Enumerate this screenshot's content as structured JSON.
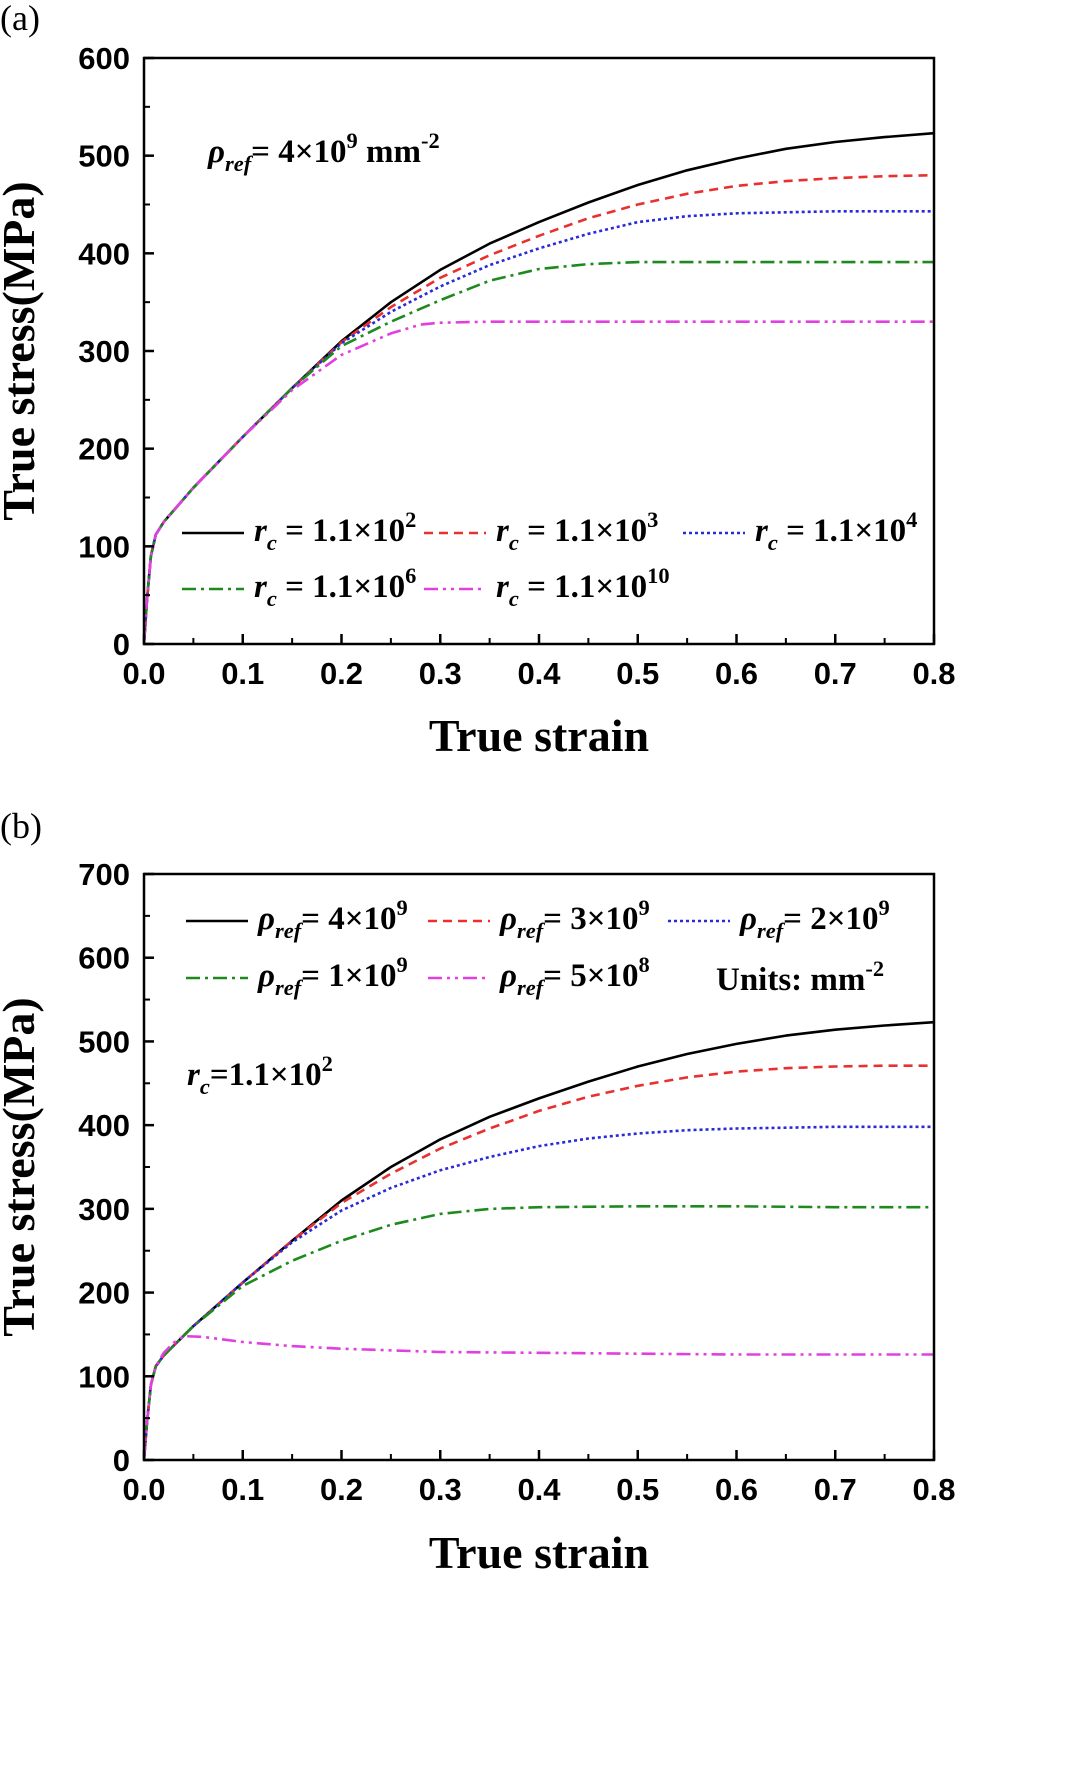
{
  "chart_data": [
    {
      "panel_label": "(a)",
      "type": "line",
      "xlabel": "True strain",
      "ylabel": "True stress(MPa)",
      "xlim": [
        0,
        0.8
      ],
      "ylim": [
        0,
        600
      ],
      "xticks": [
        "0.0",
        "0.1",
        "0.2",
        "0.3",
        "0.4",
        "0.5",
        "0.6",
        "0.7",
        "0.8"
      ],
      "yticks": [
        "0",
        "100",
        "200",
        "300",
        "400",
        "500",
        "600"
      ],
      "annotation": {
        "sym": "ρ",
        "sub": "ref",
        "pre": "= 4×10",
        "sup": "9",
        "post": " mm",
        "unitsup": "-2"
      },
      "legend_placement": "lower-center",
      "series": [
        {
          "name": "r_c = 1.1×10^2",
          "sym": "r",
          "sub": "c",
          "pre": " = 1.1×10",
          "sup": "2",
          "color": "#000000",
          "dash": "",
          "x": [
            0,
            0.003,
            0.007,
            0.012,
            0.02,
            0.05,
            0.1,
            0.15,
            0.2,
            0.25,
            0.3,
            0.35,
            0.4,
            0.45,
            0.5,
            0.55,
            0.6,
            0.65,
            0.7,
            0.75,
            0.8
          ],
          "y": [
            0,
            45,
            90,
            112,
            125,
            160,
            212,
            262,
            310,
            350,
            383,
            410,
            432,
            452,
            470,
            485,
            497,
            507,
            514,
            519,
            523
          ]
        },
        {
          "name": "r_c = 1.1×10^3",
          "sym": "r",
          "sub": "c",
          "pre": " = 1.1×10",
          "sup": "3",
          "color": "#e8312f",
          "dash": "9,6",
          "x": [
            0,
            0.003,
            0.007,
            0.012,
            0.02,
            0.05,
            0.1,
            0.15,
            0.2,
            0.25,
            0.3,
            0.35,
            0.4,
            0.45,
            0.5,
            0.55,
            0.6,
            0.65,
            0.7,
            0.75,
            0.8
          ],
          "y": [
            0,
            45,
            90,
            112,
            125,
            160,
            212,
            262,
            309,
            345,
            375,
            398,
            418,
            436,
            450,
            461,
            469,
            474,
            477,
            479,
            480
          ]
        },
        {
          "name": "r_c = 1.1×10^4",
          "sym": "r",
          "sub": "c",
          "pre": " = 1.1×10",
          "sup": "4",
          "color": "#2a2ad8",
          "dash": "3,3",
          "x": [
            0,
            0.003,
            0.007,
            0.012,
            0.02,
            0.05,
            0.1,
            0.15,
            0.2,
            0.25,
            0.3,
            0.35,
            0.4,
            0.45,
            0.5,
            0.55,
            0.6,
            0.65,
            0.7,
            0.75,
            0.8
          ],
          "y": [
            0,
            45,
            90,
            112,
            125,
            160,
            212,
            262,
            308,
            340,
            366,
            388,
            405,
            420,
            432,
            438,
            441,
            442,
            443,
            443,
            443
          ]
        },
        {
          "name": "r_c = 1.1×10^6",
          "sym": "r",
          "sub": "c",
          "pre": " = 1.1×10",
          "sup": "6",
          "color": "#1e8a1e",
          "dash": "14,5,3,5",
          "x": [
            0,
            0.003,
            0.007,
            0.012,
            0.02,
            0.05,
            0.1,
            0.15,
            0.2,
            0.25,
            0.3,
            0.35,
            0.4,
            0.45,
            0.5,
            0.55,
            0.6,
            0.7,
            0.8
          ],
          "y": [
            0,
            45,
            90,
            112,
            125,
            160,
            212,
            262,
            305,
            330,
            352,
            372,
            384,
            389,
            391,
            391,
            391,
            391,
            391
          ]
        },
        {
          "name": "r_c = 1.1×10^10",
          "sym": "r",
          "sub": "c",
          "pre": " = 1.1×10",
          "sup": "10",
          "color": "#e040e0",
          "dash": "14,5,3,5,3,5",
          "x": [
            0,
            0.003,
            0.007,
            0.012,
            0.02,
            0.05,
            0.1,
            0.15,
            0.2,
            0.25,
            0.28,
            0.3,
            0.35,
            0.4,
            0.5,
            0.6,
            0.7,
            0.8
          ],
          "y": [
            0,
            45,
            90,
            112,
            125,
            160,
            212,
            260,
            296,
            318,
            327,
            329,
            330,
            330,
            330,
            330,
            330,
            330
          ]
        }
      ]
    },
    {
      "panel_label": "(b)",
      "type": "line",
      "xlabel": "True strain",
      "ylabel": "True stress(MPa)",
      "xlim": [
        0,
        0.8
      ],
      "ylim": [
        0,
        700
      ],
      "xticks": [
        "0.0",
        "0.1",
        "0.2",
        "0.3",
        "0.4",
        "0.5",
        "0.6",
        "0.7",
        "0.8"
      ],
      "yticks": [
        "0",
        "100",
        "200",
        "300",
        "400",
        "500",
        "600",
        "700"
      ],
      "annotation": {
        "sym": "r",
        "sub": "c",
        "pre": "=1.1×10",
        "sup": "2"
      },
      "units_note": {
        "text": "Units: mm",
        "sup": "-2"
      },
      "legend_placement": "top",
      "series": [
        {
          "name": "ρ_ref = 4×10^9",
          "sym": "ρ",
          "sub": "ref",
          "pre": "= 4×10",
          "sup": "9",
          "color": "#000000",
          "dash": "",
          "x": [
            0,
            0.003,
            0.007,
            0.012,
            0.02,
            0.05,
            0.1,
            0.15,
            0.2,
            0.25,
            0.3,
            0.35,
            0.4,
            0.45,
            0.5,
            0.55,
            0.6,
            0.65,
            0.7,
            0.75,
            0.8
          ],
          "y": [
            0,
            45,
            90,
            112,
            125,
            160,
            212,
            262,
            310,
            350,
            383,
            410,
            432,
            452,
            470,
            485,
            497,
            507,
            514,
            519,
            523
          ]
        },
        {
          "name": "ρ_ref = 3×10^9",
          "sym": "ρ",
          "sub": "ref",
          "pre": "= 3×10",
          "sup": "9",
          "color": "#e8312f",
          "dash": "9,6",
          "x": [
            0,
            0.003,
            0.007,
            0.012,
            0.02,
            0.05,
            0.1,
            0.15,
            0.2,
            0.25,
            0.3,
            0.35,
            0.4,
            0.45,
            0.5,
            0.55,
            0.6,
            0.65,
            0.7,
            0.75,
            0.8
          ],
          "y": [
            0,
            45,
            90,
            112,
            125,
            160,
            212,
            262,
            307,
            342,
            372,
            396,
            417,
            434,
            447,
            457,
            464,
            468,
            470,
            471,
            471
          ]
        },
        {
          "name": "ρ_ref = 2×10^9",
          "sym": "ρ",
          "sub": "ref",
          "pre": "= 2×10",
          "sup": "9",
          "color": "#2a2ad8",
          "dash": "3,3",
          "x": [
            0,
            0.003,
            0.007,
            0.012,
            0.02,
            0.05,
            0.1,
            0.15,
            0.2,
            0.25,
            0.3,
            0.35,
            0.4,
            0.45,
            0.5,
            0.55,
            0.6,
            0.65,
            0.7,
            0.75,
            0.8
          ],
          "y": [
            0,
            45,
            90,
            112,
            125,
            160,
            212,
            260,
            298,
            325,
            346,
            362,
            375,
            384,
            390,
            394,
            396,
            397,
            398,
            398,
            398
          ]
        },
        {
          "name": "ρ_ref = 1×10^9",
          "sym": "ρ",
          "sub": "ref",
          "pre": "= 1×10",
          "sup": "9",
          "color": "#1e8a1e",
          "dash": "14,5,3,5",
          "x": [
            0,
            0.003,
            0.007,
            0.012,
            0.02,
            0.05,
            0.1,
            0.15,
            0.2,
            0.25,
            0.3,
            0.35,
            0.4,
            0.5,
            0.6,
            0.7,
            0.8
          ],
          "y": [
            0,
            45,
            90,
            112,
            125,
            160,
            208,
            238,
            262,
            281,
            294,
            300,
            302,
            303,
            303,
            302,
            302
          ]
        },
        {
          "name": "ρ_ref = 5×10^8",
          "sym": "ρ",
          "sub": "ref",
          "pre": "= 5×10",
          "sup": "8",
          "color": "#e040e0",
          "dash": "14,5,3,5,3,5",
          "x": [
            0,
            0.003,
            0.007,
            0.012,
            0.02,
            0.03,
            0.04,
            0.06,
            0.1,
            0.15,
            0.2,
            0.3,
            0.4,
            0.5,
            0.6,
            0.7,
            0.8
          ],
          "y": [
            0,
            45,
            90,
            112,
            128,
            140,
            148,
            147,
            141,
            136,
            133,
            129,
            128,
            127,
            126,
            126,
            126
          ]
        }
      ]
    }
  ]
}
